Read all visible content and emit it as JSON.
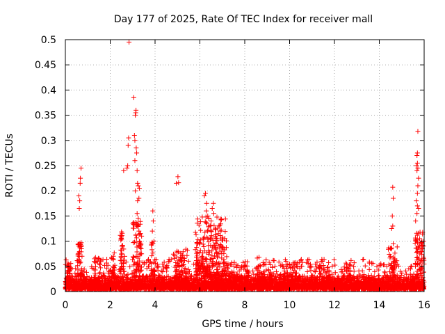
{
  "chart_data": {
    "type": "scatter",
    "title": "Day 177 of 2025, Rate Of TEC Index for receiver mall",
    "xlabel": "GPS time / hours",
    "ylabel": "ROTI / TECUs",
    "xlim": [
      0,
      16
    ],
    "ylim": [
      0,
      0.5
    ],
    "xticks": [
      "0",
      "2",
      "4",
      "6",
      "8",
      "10",
      "12",
      "14",
      "16"
    ],
    "yticks": [
      "0",
      "0.05",
      "0.1",
      "0.15",
      "0.2",
      "0.25",
      "0.3",
      "0.35",
      "0.4",
      "0.45",
      "0.5"
    ],
    "grid": true,
    "marker": "+",
    "color": "#ff0000",
    "background": {
      "xstep": 0.006,
      "base": 0.005,
      "spread": 0.03,
      "burst_chance": 0.1,
      "burst_max": 0.06
    },
    "clusters": [
      {
        "x_from": 0.05,
        "x_to": 0.25,
        "y_from": 0.02,
        "y_to": 0.06,
        "count": 30
      },
      {
        "x_from": 0.55,
        "x_to": 0.75,
        "y_from": 0.03,
        "y_to": 0.1,
        "count": 40
      },
      {
        "x_from": 1.3,
        "x_to": 1.55,
        "y_from": 0.02,
        "y_to": 0.07,
        "count": 25
      },
      {
        "x_from": 2.05,
        "x_to": 2.2,
        "y_from": 0.03,
        "y_to": 0.08,
        "count": 20
      },
      {
        "x_from": 2.45,
        "x_to": 2.65,
        "y_from": 0.04,
        "y_to": 0.12,
        "count": 30
      },
      {
        "x_from": 3.0,
        "x_to": 3.4,
        "y_from": 0.04,
        "y_to": 0.14,
        "count": 60
      },
      {
        "x_from": 3.8,
        "x_to": 4.0,
        "y_from": 0.03,
        "y_to": 0.1,
        "count": 25
      },
      {
        "x_from": 4.8,
        "x_to": 5.5,
        "y_from": 0.02,
        "y_to": 0.085,
        "count": 70
      },
      {
        "x_from": 5.8,
        "x_to": 7.2,
        "y_from": 0.03,
        "y_to": 0.15,
        "count": 260
      },
      {
        "x_from": 7.2,
        "x_to": 8.2,
        "y_from": 0.02,
        "y_to": 0.06,
        "count": 60
      },
      {
        "x_from": 8.5,
        "x_to": 9.2,
        "y_from": 0.02,
        "y_to": 0.07,
        "count": 50
      },
      {
        "x_from": 9.6,
        "x_to": 10.4,
        "y_from": 0.02,
        "y_to": 0.06,
        "count": 50
      },
      {
        "x_from": 11.3,
        "x_to": 11.8,
        "y_from": 0.02,
        "y_to": 0.055,
        "count": 30
      },
      {
        "x_from": 12.3,
        "x_to": 12.9,
        "y_from": 0.02,
        "y_to": 0.06,
        "count": 30
      },
      {
        "x_from": 14.4,
        "x_to": 14.8,
        "y_from": 0.03,
        "y_to": 0.09,
        "count": 40
      },
      {
        "x_from": 15.6,
        "x_to": 16.0,
        "y_from": 0.03,
        "y_to": 0.12,
        "count": 70
      }
    ],
    "peaks": [
      [
        0.6,
        0.19
      ],
      [
        0.62,
        0.165
      ],
      [
        0.64,
        0.18
      ],
      [
        0.66,
        0.215
      ],
      [
        0.67,
        0.225
      ],
      [
        0.7,
        0.245
      ],
      [
        0.62,
        0.095
      ],
      [
        0.66,
        0.09
      ],
      [
        0.72,
        0.085
      ],
      [
        2.5,
        0.11
      ],
      [
        2.55,
        0.09
      ],
      [
        2.6,
        0.24
      ],
      [
        2.65,
        0.07
      ],
      [
        2.75,
        0.245
      ],
      [
        2.78,
        0.25
      ],
      [
        2.8,
        0.29
      ],
      [
        2.82,
        0.305
      ],
      [
        2.84,
        0.495
      ],
      [
        3.05,
        0.385
      ],
      [
        3.08,
        0.31
      ],
      [
        3.1,
        0.3
      ],
      [
        3.12,
        0.35
      ],
      [
        3.15,
        0.36
      ],
      [
        3.14,
        0.355
      ],
      [
        3.16,
        0.285
      ],
      [
        3.18,
        0.275
      ],
      [
        3.2,
        0.24
      ],
      [
        3.22,
        0.215
      ],
      [
        3.1,
        0.26
      ],
      [
        3.12,
        0.2
      ],
      [
        3.25,
        0.21
      ],
      [
        3.3,
        0.205
      ],
      [
        3.28,
        0.185
      ],
      [
        3.22,
        0.18
      ],
      [
        3.2,
        0.155
      ],
      [
        3.25,
        0.145
      ],
      [
        3.28,
        0.12
      ],
      [
        3.3,
        0.1
      ],
      [
        3.35,
        0.115
      ],
      [
        3.4,
        0.11
      ],
      [
        3.32,
        0.09
      ],
      [
        3.38,
        0.085
      ],
      [
        3.4,
        0.075
      ],
      [
        3.18,
        0.13
      ],
      [
        3.9,
        0.16
      ],
      [
        3.92,
        0.14
      ],
      [
        3.88,
        0.12
      ],
      [
        3.95,
        0.1
      ],
      [
        3.9,
        0.095
      ],
      [
        4.95,
        0.215
      ],
      [
        5.02,
        0.228
      ],
      [
        5.05,
        0.216
      ],
      [
        6.2,
        0.19
      ],
      [
        6.25,
        0.195
      ],
      [
        6.3,
        0.175
      ],
      [
        6.28,
        0.16
      ],
      [
        6.35,
        0.15
      ],
      [
        6.4,
        0.145
      ],
      [
        6.45,
        0.13
      ],
      [
        6.5,
        0.14
      ],
      [
        6.55,
        0.165
      ],
      [
        6.6,
        0.175
      ],
      [
        6.62,
        0.155
      ],
      [
        6.5,
        0.12
      ],
      [
        6.7,
        0.11
      ],
      [
        6.75,
        0.105
      ],
      [
        6.85,
        0.13
      ],
      [
        6.9,
        0.12
      ],
      [
        6.35,
        0.105
      ],
      [
        14.6,
        0.207
      ],
      [
        14.62,
        0.185
      ],
      [
        14.58,
        0.15
      ],
      [
        14.55,
        0.125
      ],
      [
        14.6,
        0.13
      ],
      [
        14.62,
        0.095
      ],
      [
        15.72,
        0.318
      ],
      [
        15.7,
        0.275
      ],
      [
        15.68,
        0.27
      ],
      [
        15.65,
        0.25
      ],
      [
        15.7,
        0.255
      ],
      [
        15.72,
        0.245
      ],
      [
        15.68,
        0.24
      ],
      [
        15.75,
        0.225
      ],
      [
        15.72,
        0.21
      ],
      [
        15.7,
        0.195
      ],
      [
        15.65,
        0.18
      ],
      [
        15.7,
        0.17
      ],
      [
        15.75,
        0.165
      ],
      [
        15.68,
        0.155
      ],
      [
        15.62,
        0.14
      ],
      [
        15.66,
        0.1
      ],
      [
        15.85,
        0.095
      ],
      [
        15.88,
        0.09
      ],
      [
        15.9,
        0.1
      ],
      [
        15.92,
        0.085
      ],
      [
        15.8,
        0.105
      ]
    ]
  }
}
